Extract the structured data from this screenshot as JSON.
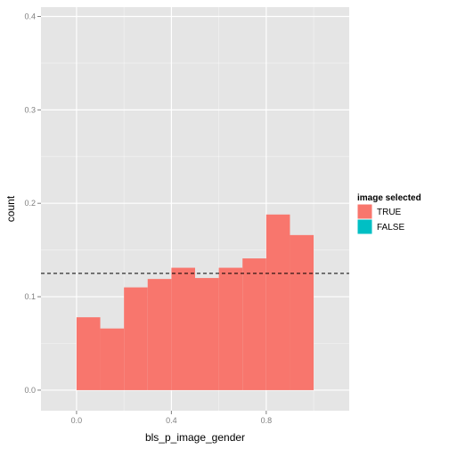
{
  "chart_data": {
    "type": "bar",
    "subtype": "histogram",
    "xlabel": "bls_p_image_gender",
    "ylabel": "count",
    "xlim": [
      -0.15,
      1.15
    ],
    "ylim": [
      -0.022,
      0.41
    ],
    "x_ticks": [
      0.0,
      0.4,
      0.8
    ],
    "x_tick_labels": [
      "0.0",
      "0.4",
      "0.8"
    ],
    "y_ticks": [
      0.0,
      0.1,
      0.2,
      0.3,
      0.4
    ],
    "y_tick_labels": [
      "0.0",
      "0.1",
      "0.2",
      "0.3",
      "0.4"
    ],
    "grid": true,
    "bin_edges": [
      0.0,
      0.1,
      0.2,
      0.3,
      0.4,
      0.5,
      0.6,
      0.7,
      0.8,
      0.9,
      1.0
    ],
    "series": [
      {
        "name": "TRUE",
        "color": "#F8766D",
        "values": [
          0.078,
          0.066,
          0.11,
          0.119,
          0.131,
          0.12,
          0.131,
          0.141,
          0.188,
          0.166
        ]
      }
    ],
    "reference_line": {
      "y": 0.125,
      "style": "dashed",
      "color": "#000000"
    },
    "legend": {
      "title": "image selected",
      "position": "right",
      "entries": [
        {
          "label": "TRUE",
          "color": "#F8766D"
        },
        {
          "label": "FALSE",
          "color": "#00BFC4"
        }
      ]
    },
    "panel_background": "#E5E5E5",
    "grid_color": "#FFFFFF"
  }
}
